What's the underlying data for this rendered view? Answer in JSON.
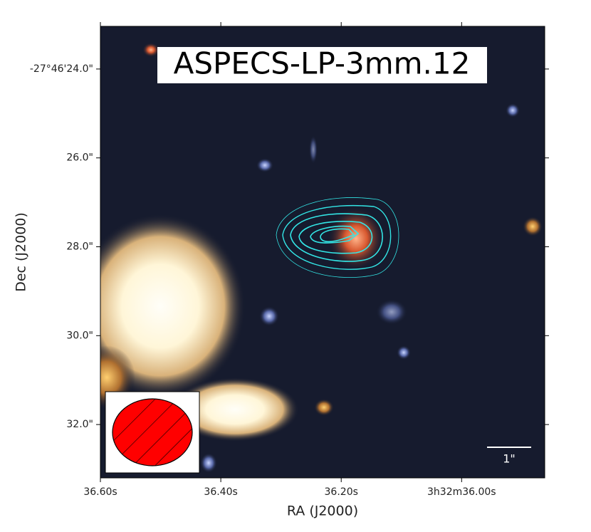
{
  "chart_data": {
    "type": "image",
    "title": "ASPECS-LP-3mm.12",
    "x_label": "RA (J2000)",
    "y_label": "Dec (J2000)",
    "scale_bar": "1\"",
    "xlim": [
      36.6,
      35.862
    ],
    "xticks": [
      {
        "value": 36.6,
        "label": "36.60s"
      },
      {
        "value": 36.4,
        "label": "36.40s"
      },
      {
        "value": 36.2,
        "label": "36.20s"
      },
      {
        "value": 36.0,
        "label": "3h32m36.00s"
      }
    ],
    "ylim": [
      33.2,
      23.04
    ],
    "yticks": [
      {
        "value": 24,
        "label": "-27°46'24.0\""
      },
      {
        "value": 26,
        "label": "26.0\""
      },
      {
        "value": 28,
        "label": "28.0\""
      },
      {
        "value": 30,
        "label": "30.0\""
      },
      {
        "value": 32,
        "label": "32.0\""
      }
    ]
  }
}
